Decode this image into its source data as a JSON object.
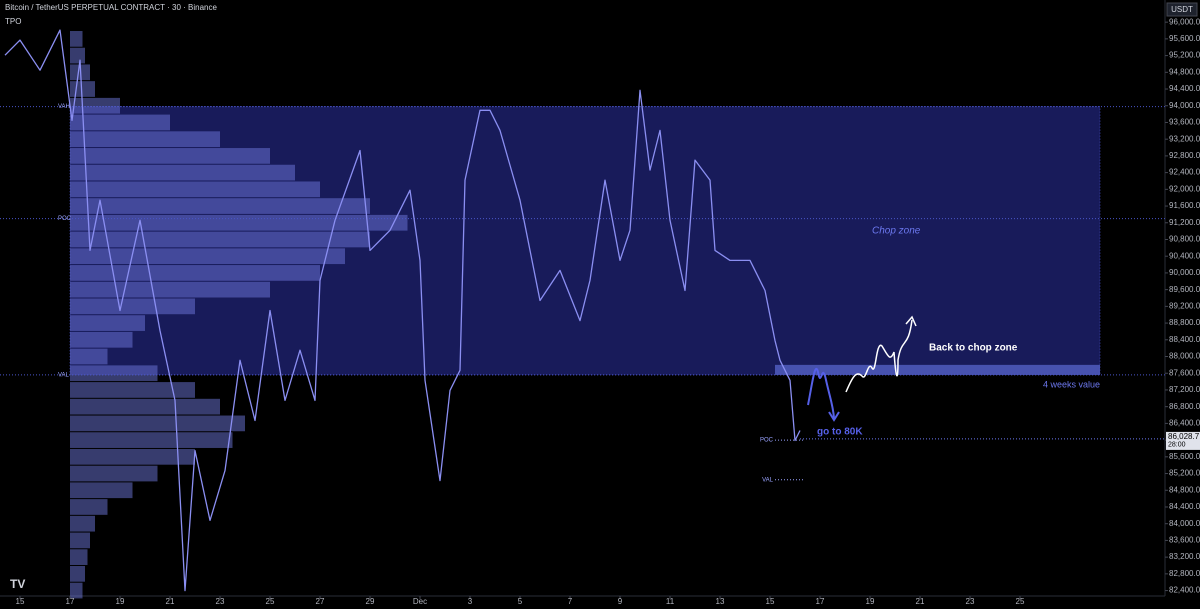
{
  "chart_data": {
    "type": "line",
    "title": "Bitcoin / TetherUS PERPETUAL CONTRACT · 30 · Binance",
    "indicator": "TPO",
    "currency": "USDT",
    "color": "#8b8ff2",
    "xlim": [
      -0.8,
      45.8
    ],
    "ylim": [
      82270,
      96530
    ],
    "xticks": [
      {
        "value": 0,
        "label": "15"
      },
      {
        "value": 2,
        "label": "17"
      },
      {
        "value": 4,
        "label": "19"
      },
      {
        "value": 6,
        "label": "21"
      },
      {
        "value": 8,
        "label": "23"
      },
      {
        "value": 10,
        "label": "25"
      },
      {
        "value": 12,
        "label": "27"
      },
      {
        "value": 14,
        "label": "29"
      },
      {
        "value": 16,
        "label": "Dec"
      },
      {
        "value": 18,
        "label": "3"
      },
      {
        "value": 20,
        "label": "5"
      },
      {
        "value": 22,
        "label": "7"
      },
      {
        "value": 24,
        "label": "9"
      },
      {
        "value": 26,
        "label": "11"
      },
      {
        "value": 28,
        "label": "13"
      },
      {
        "value": 30,
        "label": "15"
      },
      {
        "value": 32,
        "label": "17"
      },
      {
        "value": 34,
        "label": "19"
      },
      {
        "value": 36,
        "label": "21"
      },
      {
        "value": 38,
        "label": "23"
      },
      {
        "value": 40,
        "label": "25"
      }
    ],
    "yticks": [
      {
        "value": 96000,
        "label": "96,000.0"
      },
      {
        "value": 95600,
        "label": "95,600.0"
      },
      {
        "value": 95200,
        "label": "95,200.0"
      },
      {
        "value": 94800,
        "label": "94,800.0"
      },
      {
        "value": 94400,
        "label": "94,400.0"
      },
      {
        "value": 94000,
        "label": "94,000.0"
      },
      {
        "value": 93600,
        "label": "93,600.0"
      },
      {
        "value": 93200,
        "label": "93,200.0"
      },
      {
        "value": 92800,
        "label": "92,800.0"
      },
      {
        "value": 92400,
        "label": "92,400.0"
      },
      {
        "value": 92000,
        "label": "92,000.0"
      },
      {
        "value": 91600,
        "label": "91,600.0"
      },
      {
        "value": 91200,
        "label": "91,200.0"
      },
      {
        "value": 90800,
        "label": "90,800.0"
      },
      {
        "value": 90400,
        "label": "90,400.0"
      },
      {
        "value": 90000,
        "label": "90,000.0"
      },
      {
        "value": 89600,
        "label": "89,600.0"
      },
      {
        "value": 89200,
        "label": "89,200.0"
      },
      {
        "value": 88800,
        "label": "88,800.0"
      },
      {
        "value": 88400,
        "label": "88,400.0"
      },
      {
        "value": 88000,
        "label": "88,000.0"
      },
      {
        "value": 87600,
        "label": "87,600.0"
      },
      {
        "value": 87200,
        "label": "87,200.0"
      },
      {
        "value": 86800,
        "label": "86,800.0"
      },
      {
        "value": 86400,
        "label": "86,400.0"
      },
      {
        "value": 86000,
        "label": "86,000.0"
      },
      {
        "value": 85600,
        "label": "85,600.0"
      },
      {
        "value": 85200,
        "label": "85,200.0"
      },
      {
        "value": 84800,
        "label": "84,800.0"
      },
      {
        "value": 84400,
        "label": "84,400.0"
      },
      {
        "value": 84000,
        "label": "84,000.0"
      },
      {
        "value": 83600,
        "label": "83,600.0"
      },
      {
        "value": 83200,
        "label": "83,200.0"
      },
      {
        "value": 82800,
        "label": "82,800.0"
      },
      {
        "value": 82400,
        "label": "82,400.0"
      }
    ],
    "x": [
      -0.6,
      0,
      0.8,
      1.6,
      2.08,
      2.4,
      2.8,
      3.2,
      4,
      4.8,
      5.6,
      6.2,
      6.6,
      7,
      7.6,
      8.2,
      8.8,
      9.4,
      10,
      10.6,
      11.2,
      11.8,
      12,
      12.6,
      13.6,
      14,
      14.8,
      15.6,
      16,
      16.2,
      16.8,
      17.2,
      17.6,
      17.8,
      18.4,
      18.8,
      19.2,
      20,
      20.8,
      21.6,
      22.4,
      22.8,
      23.4,
      24,
      24.4,
      24.8,
      25.2,
      25.6,
      26,
      26.6,
      27,
      27.6,
      27.8,
      28.4,
      29.2,
      29.8,
      30.2,
      30.4,
      30.8,
      31,
      31.2
    ],
    "values": [
      95210,
      95570,
      94850,
      95810,
      93650,
      95090,
      90540,
      91740,
      89100,
      91260,
      88620,
      86950,
      82400,
      85750,
      84080,
      85270,
      87910,
      86470,
      89100,
      86950,
      88150,
      86950,
      89820,
      91260,
      92930,
      90540,
      91020,
      91980,
      90300,
      87430,
      85030,
      87190,
      87670,
      92220,
      93890,
      93890,
      93410,
      91740,
      89340,
      90060,
      88860,
      89820,
      92220,
      90300,
      91020,
      94370,
      92460,
      93410,
      91260,
      89580,
      92700,
      92220,
      90540,
      90300,
      90300,
      89580,
      88380,
      87910,
      87430,
      85990,
      86230
    ],
    "profile": {
      "levels": [
        82400,
        82800,
        83200,
        83600,
        84000,
        84400,
        84800,
        85200,
        85600,
        86000,
        86400,
        86800,
        87200,
        87600,
        88000,
        88400,
        88800,
        89200,
        89600,
        90000,
        90400,
        90800,
        91200,
        91600,
        92000,
        92400,
        92800,
        93200,
        93600,
        94000,
        94400,
        94800,
        95200,
        95600
      ],
      "values": [
        0.5,
        0.6,
        0.7,
        0.8,
        1.0,
        1.5,
        2.5,
        3.5,
        5,
        6.5,
        7,
        6,
        5,
        3.5,
        1.5,
        2.5,
        3,
        5,
        8,
        10,
        11,
        12,
        13.5,
        12,
        10,
        9,
        8,
        6,
        4,
        2,
        1,
        0.8,
        0.6,
        0.5
      ]
    },
    "zones": [
      {
        "label": "Chop zone",
        "xlim": [
          2,
          43.2
        ],
        "ylim": [
          87560,
          93980
        ]
      },
      {
        "label": "4 weeks  value",
        "xlim": [
          30.2,
          43.2
        ],
        "ylim": [
          87560,
          87800
        ]
      }
    ],
    "levels": [
      {
        "label": "VAH",
        "value": 93980
      },
      {
        "label": "POC",
        "value": 91300
      },
      {
        "label": "VAL",
        "value": 87560
      }
    ],
    "session_levels": [
      {
        "label": "POC",
        "value": 86000
      },
      {
        "label": "VAL",
        "value": 85050
      }
    ],
    "annotations": [
      "Back to chop zone",
      "go to 80K"
    ],
    "last_price": {
      "value": 86028.7,
      "label": "86,028.7",
      "timer": "28:00"
    }
  }
}
